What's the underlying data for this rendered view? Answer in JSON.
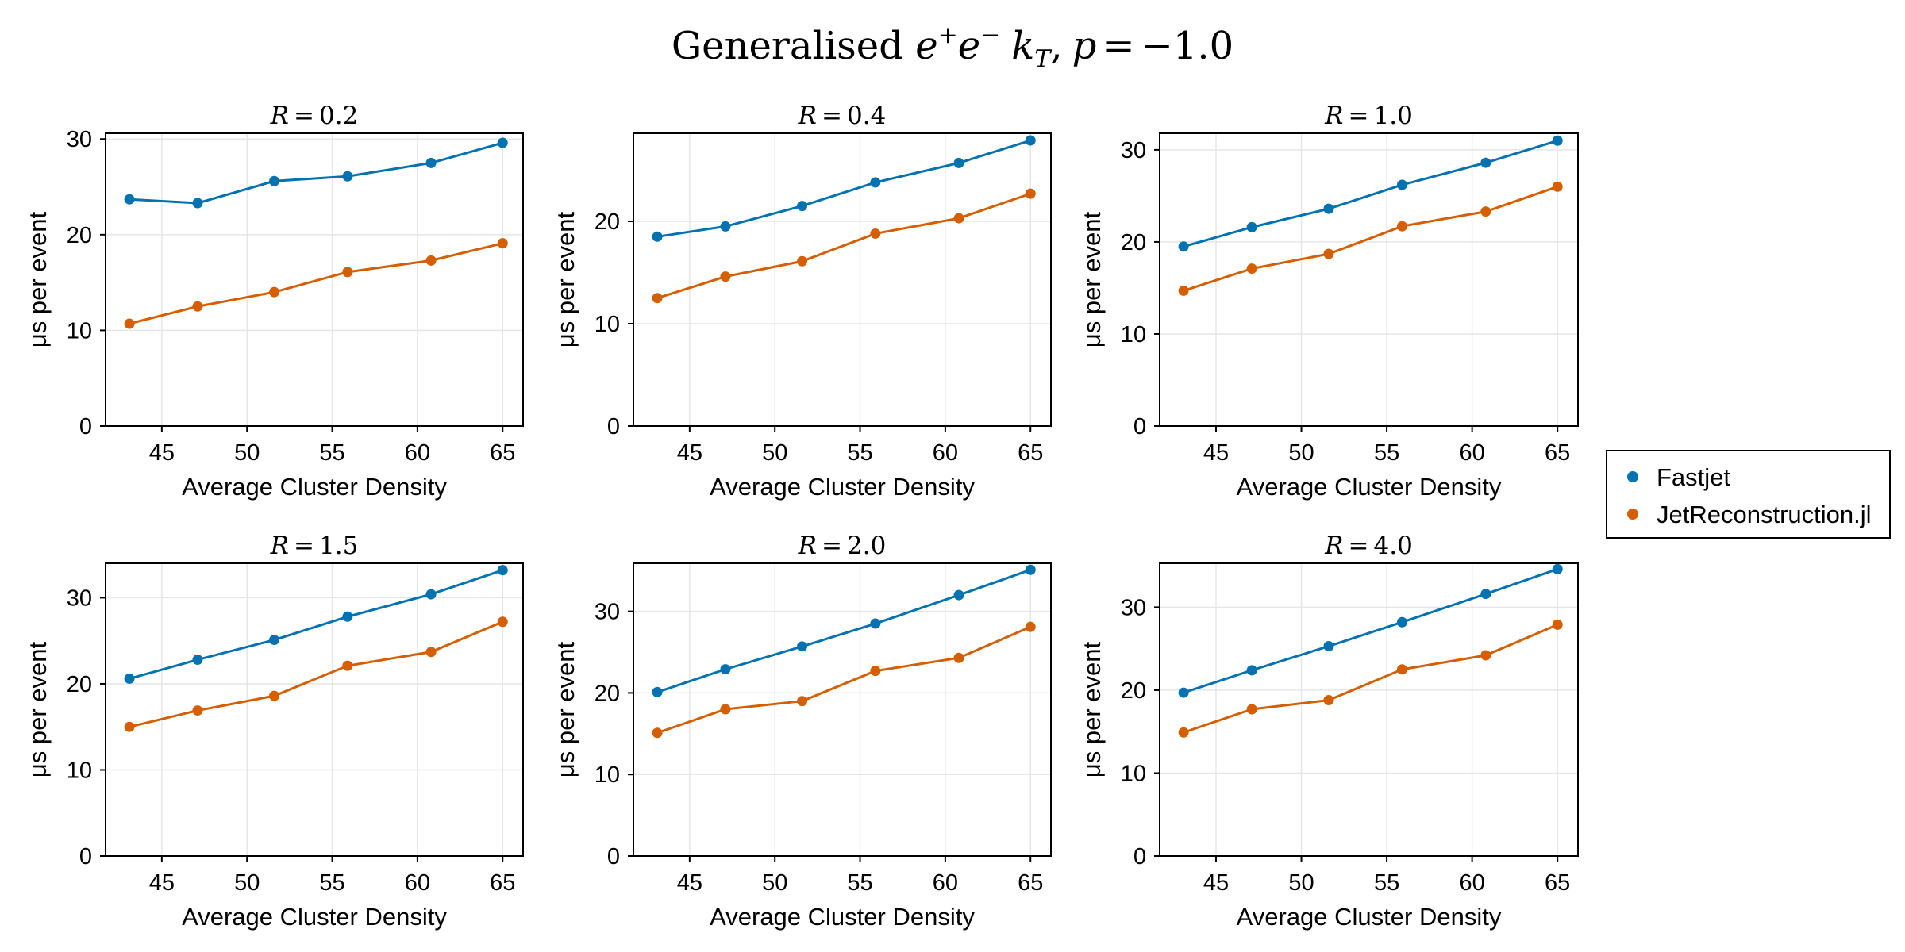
{
  "figure": {
    "title_parts": {
      "prefix": "Generalised ",
      "e": "e",
      "plus": "+",
      "minus": "−",
      "k": "k",
      "T": "T",
      "comma": ",",
      "p": "p",
      "eq": "=",
      "pval": "−1.0"
    }
  },
  "legend": {
    "entries": [
      {
        "label": "Fastjet",
        "color": "#0072B2"
      },
      {
        "label": "JetReconstruction.jl",
        "color": "#D55E00"
      }
    ]
  },
  "colors": {
    "grid": "#e6e6e6",
    "axis": "#000000",
    "series1": "#0072B2",
    "series2": "#D55E00"
  },
  "chart_data": [
    {
      "type": "line",
      "title": "R = 0.2",
      "title_parts": {
        "lhs": "R",
        "eq": "=",
        "rhs": "0.2"
      },
      "xlabel": "Average Cluster Density",
      "ylabel": "μs per event",
      "xlim": [
        41.7,
        66.2
      ],
      "ylim": [
        0,
        30.6
      ],
      "xticks": [
        45,
        50,
        55,
        60,
        65
      ],
      "yticks": [
        0,
        10,
        20,
        30
      ],
      "x": [
        43.1,
        47.1,
        51.6,
        55.9,
        60.8,
        65.0
      ],
      "series": [
        {
          "name": "Fastjet",
          "color": "#0072B2",
          "values": [
            23.7,
            23.3,
            25.6,
            26.1,
            27.5,
            29.6
          ]
        },
        {
          "name": "JetReconstruction.jl",
          "color": "#D55E00",
          "values": [
            10.7,
            12.5,
            14.0,
            16.1,
            17.3,
            19.1
          ]
        }
      ]
    },
    {
      "type": "line",
      "title": "R = 0.4",
      "title_parts": {
        "lhs": "R",
        "eq": "=",
        "rhs": "0.4"
      },
      "xlabel": "Average Cluster Density",
      "ylabel": "μs per event",
      "xlim": [
        41.7,
        66.2
      ],
      "ylim": [
        0,
        28.6
      ],
      "xticks": [
        45,
        50,
        55,
        60,
        65
      ],
      "yticks": [
        0,
        10,
        20
      ],
      "x": [
        43.1,
        47.1,
        51.6,
        55.9,
        60.8,
        65.0
      ],
      "series": [
        {
          "name": "Fastjet",
          "color": "#0072B2",
          "values": [
            18.5,
            19.5,
            21.5,
            23.8,
            25.7,
            27.9
          ]
        },
        {
          "name": "JetReconstruction.jl",
          "color": "#D55E00",
          "values": [
            12.5,
            14.6,
            16.1,
            18.8,
            20.3,
            22.7
          ]
        }
      ]
    },
    {
      "type": "line",
      "title": "R = 1.0",
      "title_parts": {
        "lhs": "R",
        "eq": "=",
        "rhs": "1.0"
      },
      "xlabel": "Average Cluster Density",
      "ylabel": "μs per event",
      "xlim": [
        41.7,
        66.2
      ],
      "ylim": [
        0,
        31.8
      ],
      "xticks": [
        45,
        50,
        55,
        60,
        65
      ],
      "yticks": [
        0,
        10,
        20,
        30
      ],
      "x": [
        43.1,
        47.1,
        51.6,
        55.9,
        60.8,
        65.0
      ],
      "series": [
        {
          "name": "Fastjet",
          "color": "#0072B2",
          "values": [
            19.5,
            21.6,
            23.6,
            26.2,
            28.6,
            31.0
          ]
        },
        {
          "name": "JetReconstruction.jl",
          "color": "#D55E00",
          "values": [
            14.7,
            17.1,
            18.7,
            21.7,
            23.3,
            26.0
          ]
        }
      ]
    },
    {
      "type": "line",
      "title": "R = 1.5",
      "title_parts": {
        "lhs": "R",
        "eq": "=",
        "rhs": "1.5"
      },
      "xlabel": "Average Cluster Density",
      "ylabel": "μs per event",
      "xlim": [
        41.7,
        66.2
      ],
      "ylim": [
        0,
        34.0
      ],
      "xticks": [
        45,
        50,
        55,
        60,
        65
      ],
      "yticks": [
        0,
        10,
        20,
        30
      ],
      "x": [
        43.1,
        47.1,
        51.6,
        55.9,
        60.8,
        65.0
      ],
      "series": [
        {
          "name": "Fastjet",
          "color": "#0072B2",
          "values": [
            20.6,
            22.8,
            25.1,
            27.8,
            30.4,
            33.2
          ]
        },
        {
          "name": "JetReconstruction.jl",
          "color": "#D55E00",
          "values": [
            15.0,
            16.9,
            18.6,
            22.1,
            23.7,
            27.2
          ]
        }
      ]
    },
    {
      "type": "line",
      "title": "R = 2.0",
      "title_parts": {
        "lhs": "R",
        "eq": "=",
        "rhs": "2.0"
      },
      "xlabel": "Average Cluster Density",
      "ylabel": "μs per event",
      "xlim": [
        41.7,
        66.2
      ],
      "ylim": [
        0,
        35.9
      ],
      "xticks": [
        45,
        50,
        55,
        60,
        65
      ],
      "yticks": [
        0,
        10,
        20,
        30
      ],
      "x": [
        43.1,
        47.1,
        51.6,
        55.9,
        60.8,
        65.0
      ],
      "series": [
        {
          "name": "Fastjet",
          "color": "#0072B2",
          "values": [
            20.1,
            22.9,
            25.7,
            28.5,
            32.0,
            35.1
          ]
        },
        {
          "name": "JetReconstruction.jl",
          "color": "#D55E00",
          "values": [
            15.1,
            18.0,
            19.0,
            22.7,
            24.3,
            28.1
          ]
        }
      ]
    },
    {
      "type": "line",
      "title": "R = 4.0",
      "title_parts": {
        "lhs": "R",
        "eq": "=",
        "rhs": "4.0"
      },
      "xlabel": "Average Cluster Density",
      "ylabel": "μs per event",
      "xlim": [
        41.7,
        66.2
      ],
      "ylim": [
        0,
        35.3
      ],
      "xticks": [
        45,
        50,
        55,
        60,
        65
      ],
      "yticks": [
        0,
        10,
        20,
        30
      ],
      "x": [
        43.1,
        47.1,
        51.6,
        55.9,
        60.8,
        65.0
      ],
      "series": [
        {
          "name": "Fastjet",
          "color": "#0072B2",
          "values": [
            19.7,
            22.4,
            25.3,
            28.2,
            31.6,
            34.6
          ]
        },
        {
          "name": "JetReconstruction.jl",
          "color": "#D55E00",
          "values": [
            14.9,
            17.7,
            18.8,
            22.5,
            24.2,
            27.9
          ]
        }
      ]
    }
  ]
}
